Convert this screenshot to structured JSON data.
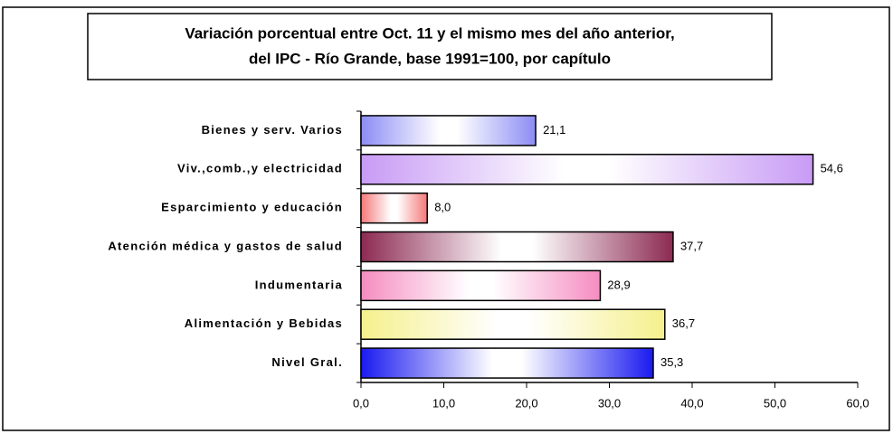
{
  "chart_data": {
    "type": "bar",
    "orientation": "horizontal",
    "title": [
      "Variación porcentual entre Oct. 11 y el mismo  mes del año anterior,",
      "del IPC - Río Grande, base 1991=100, por capítulo"
    ],
    "categories": [
      "Bienes y serv. Varios",
      "Viv.,comb.,y electricidad",
      "Esparcimiento y educación",
      "Atención médica y gastos de salud",
      "Indumentaria",
      "Alimentación y Bebidas",
      "Nivel Gral."
    ],
    "values": [
      21.1,
      54.6,
      8.0,
      37.7,
      28.9,
      36.7,
      35.3
    ],
    "value_labels": [
      "21,1",
      "54,6",
      "8,0",
      "37,7",
      "28,9",
      "36,7",
      "35,3"
    ],
    "colors": [
      "#8c8cf5",
      "#c89bf5",
      "#f57878",
      "#8c2a52",
      "#f58cc0",
      "#f5f08c",
      "#1a1af0"
    ],
    "xlim": [
      0,
      60
    ],
    "xticks": [
      {
        "value": 0,
        "label": "0,0"
      },
      {
        "value": 10,
        "label": "10,0"
      },
      {
        "value": 20,
        "label": "20,0"
      },
      {
        "value": 30,
        "label": "30,0"
      },
      {
        "value": 40,
        "label": "40,0"
      },
      {
        "value": 50,
        "label": "50,0"
      },
      {
        "value": 60,
        "label": "60,0"
      }
    ]
  }
}
